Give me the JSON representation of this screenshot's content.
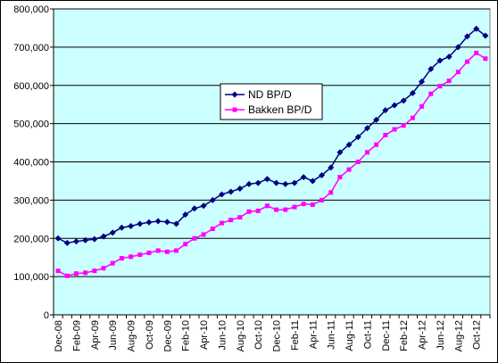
{
  "chart_data": {
    "type": "line",
    "title": "",
    "xlabel": "",
    "ylabel": "",
    "ylim": [
      0,
      800000
    ],
    "y_ticks": [
      "0",
      "100,000",
      "200,000",
      "300,000",
      "400,000",
      "500,000",
      "600,000",
      "700,000",
      "800,000"
    ],
    "x_tick_labels": [
      "Dec-08",
      "Feb-09",
      "Apr-09",
      "Jun-09",
      "Aug-09",
      "Oct-09",
      "Dec-09",
      "Feb-10",
      "Apr-10",
      "Jun-10",
      "Aug-10",
      "Oct-10",
      "Dec-10",
      "Feb-11",
      "Apr-11",
      "Jun-11",
      "Aug-11",
      "Oct-11",
      "Dec-11",
      "Feb-12",
      "Apr-12",
      "Jun-12",
      "Aug-12",
      "Oct-12"
    ],
    "x": [
      "Dec-08",
      "Jan-09",
      "Feb-09",
      "Mar-09",
      "Apr-09",
      "May-09",
      "Jun-09",
      "Jul-09",
      "Aug-09",
      "Sep-09",
      "Oct-09",
      "Nov-09",
      "Dec-09",
      "Jan-10",
      "Feb-10",
      "Mar-10",
      "Apr-10",
      "May-10",
      "Jun-10",
      "Jul-10",
      "Aug-10",
      "Sep-10",
      "Oct-10",
      "Nov-10",
      "Dec-10",
      "Jan-11",
      "Feb-11",
      "Mar-11",
      "Apr-11",
      "May-11",
      "Jun-11",
      "Jul-11",
      "Aug-11",
      "Sep-11",
      "Oct-11",
      "Nov-11",
      "Dec-11",
      "Jan-12",
      "Feb-12",
      "Mar-12",
      "Apr-12",
      "May-12",
      "Jun-12",
      "Jul-12",
      "Aug-12",
      "Sep-12",
      "Oct-12",
      "Nov-12"
    ],
    "grid": true,
    "legend_position": "center",
    "plot_background": "#ccffff",
    "series": [
      {
        "name": "ND BP/D",
        "color": "#000080",
        "marker": "diamond",
        "values": [
          200000,
          188000,
          192000,
          195000,
          198000,
          205000,
          215000,
          228000,
          232000,
          238000,
          242000,
          245000,
          243000,
          238000,
          262000,
          278000,
          285000,
          300000,
          315000,
          322000,
          330000,
          342000,
          345000,
          355000,
          345000,
          342000,
          345000,
          360000,
          350000,
          365000,
          385000,
          425000,
          445000,
          465000,
          488000,
          510000,
          535000,
          548000,
          560000,
          580000,
          610000,
          643000,
          665000,
          675000,
          700000,
          728000,
          748000,
          730000
        ]
      },
      {
        "name": "Bakken BP/D",
        "color": "#ff00ff",
        "marker": "square",
        "values": [
          115000,
          102000,
          108000,
          110000,
          115000,
          122000,
          135000,
          148000,
          152000,
          157000,
          162000,
          168000,
          165000,
          168000,
          185000,
          200000,
          210000,
          225000,
          240000,
          248000,
          255000,
          270000,
          272000,
          285000,
          275000,
          275000,
          282000,
          290000,
          288000,
          300000,
          320000,
          360000,
          380000,
          400000,
          425000,
          445000,
          470000,
          485000,
          495000,
          515000,
          545000,
          578000,
          598000,
          612000,
          635000,
          662000,
          685000,
          670000
        ]
      }
    ]
  }
}
